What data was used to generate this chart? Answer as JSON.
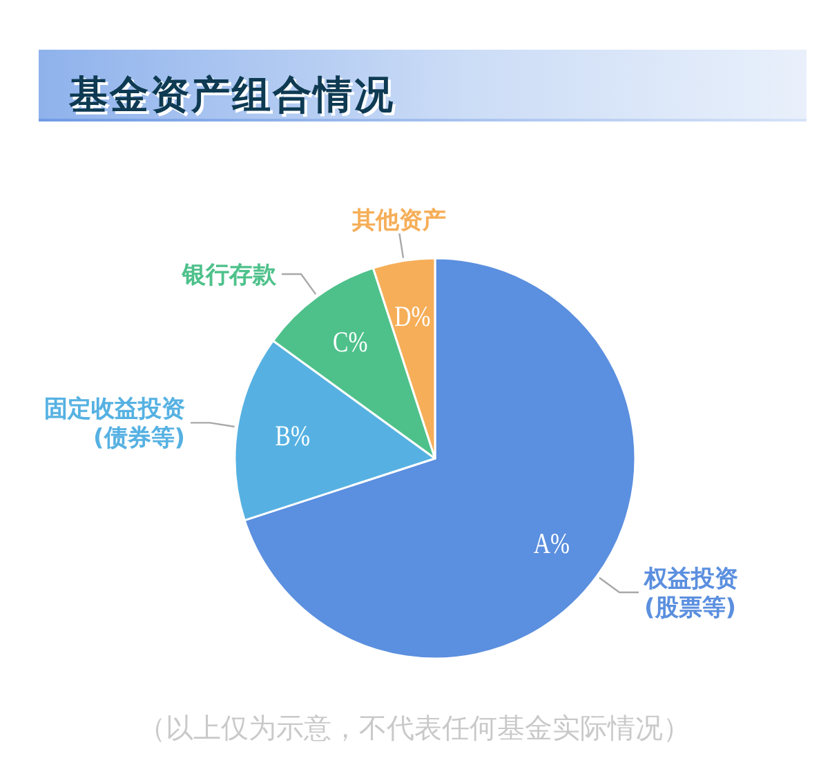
{
  "chart_data": {
    "type": "pie",
    "title": "基金资产组合情况",
    "categories": [
      "权益投资\n(股票等)",
      "固定收益投资\n(债券等)",
      "银行存款",
      "其他资产"
    ],
    "values": [
      70,
      15,
      10,
      5
    ],
    "colors": [
      "#5b8fdf",
      "#56b1e2",
      "#4ec18b",
      "#f6ae58"
    ],
    "value_labels": [
      "A%",
      "B%",
      "C%",
      "D%"
    ],
    "annotations": [
      "（以上仅为示意，不代表任何基金实际情况）"
    ]
  }
}
